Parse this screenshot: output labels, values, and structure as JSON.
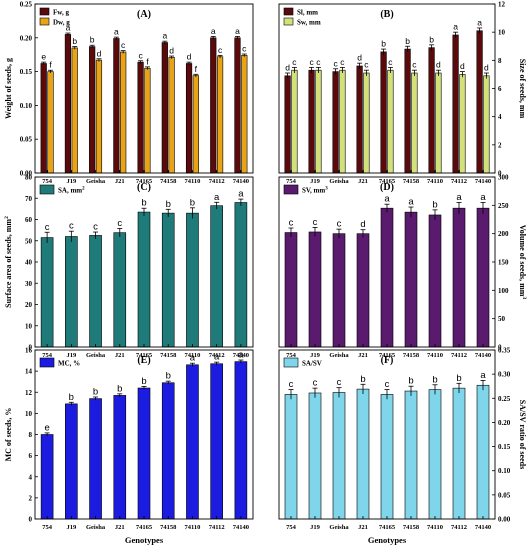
{
  "genotypes": [
    "754",
    "J19",
    "Geisha",
    "J21",
    "74165",
    "74158",
    "74110",
    "74112",
    "74140"
  ],
  "xlabel": "Genotypes",
  "chart_data": [
    {
      "type": "bar",
      "panel": "(A)",
      "ylabel": "Weight of seeds, g",
      "ylim": [
        0,
        0.25
      ],
      "yticks": [
        "0.00",
        "0.05",
        "0.10",
        "0.15",
        "0.20",
        "0.25"
      ],
      "grid": false,
      "legend": "top-left",
      "categories": [
        "754",
        "J19",
        "Geisha",
        "J21",
        "74165",
        "74158",
        "74110",
        "74112",
        "74140"
      ],
      "series": [
        {
          "name": "Fw, g",
          "color": "#5a0a0a",
          "values": [
            0.162,
            0.205,
            0.187,
            0.199,
            0.164,
            0.193,
            0.162,
            0.2,
            0.2
          ],
          "err": [
            0.002,
            0.002,
            0.002,
            0.002,
            0.002,
            0.002,
            0.002,
            0.002,
            0.002
          ],
          "letters": [
            "e",
            "a",
            "b",
            "a",
            "c",
            "a",
            "d",
            "a",
            "a"
          ]
        },
        {
          "name": "Dw, g",
          "color": "#e8a317",
          "values": [
            0.15,
            0.185,
            0.167,
            0.179,
            0.155,
            0.171,
            0.144,
            0.172,
            0.174
          ],
          "err": [
            0.002,
            0.002,
            0.002,
            0.002,
            0.002,
            0.002,
            0.002,
            0.002,
            0.002
          ],
          "letters": [
            "f",
            "b",
            "d",
            "c",
            "f",
            "d",
            "f",
            "c",
            "c"
          ]
        }
      ]
    },
    {
      "type": "bar",
      "panel": "(B)",
      "ylabel": "Size of seeds, mm",
      "ylim": [
        0,
        12
      ],
      "yticks": [
        "0",
        "2",
        "4",
        "6",
        "8",
        "10",
        "12"
      ],
      "grid": false,
      "legend": "top-left",
      "categories": [
        "754",
        "J19",
        "Geisha",
        "J21",
        "74165",
        "74158",
        "74110",
        "74112",
        "74140"
      ],
      "series": [
        {
          "name": "Sl, mm",
          "color": "#5a0a0a",
          "values": [
            6.9,
            7.3,
            7.2,
            7.6,
            8.6,
            8.8,
            8.9,
            9.8,
            10.1
          ],
          "err": [
            0.2,
            0.2,
            0.2,
            0.2,
            0.2,
            0.2,
            0.2,
            0.2,
            0.2
          ],
          "letters": [
            "d",
            "c",
            "c",
            "d",
            "b",
            "b",
            "b",
            "a",
            "a"
          ]
        },
        {
          "name": "Sw, mm",
          "color": "#d4e07a",
          "values": [
            7.3,
            7.3,
            7.3,
            7.1,
            7.3,
            7.1,
            7.1,
            7.0,
            6.9
          ],
          "err": [
            0.2,
            0.2,
            0.2,
            0.2,
            0.2,
            0.2,
            0.2,
            0.2,
            0.2
          ],
          "letters": [
            "c",
            "c",
            "c",
            "c",
            "c",
            "c",
            "d",
            "d",
            "d"
          ]
        }
      ]
    },
    {
      "type": "bar",
      "panel": "(C)",
      "ylabel": "Surface area of seeds, mm",
      "ylabel_sup": "2",
      "ylim": [
        0,
        80
      ],
      "yticks": [
        "0",
        "10",
        "20",
        "30",
        "40",
        "50",
        "60",
        "70",
        "80"
      ],
      "grid": false,
      "legend": "top-left",
      "categories": [
        "754",
        "J19",
        "Geisha",
        "J21",
        "74165",
        "74158",
        "74110",
        "74112",
        "74140"
      ],
      "series": [
        {
          "name": "SA, mm",
          "name_sup": "2",
          "color": "#1f7a7a",
          "values": [
            51.5,
            52.0,
            52.5,
            53.8,
            63.5,
            63.0,
            63.0,
            66.5,
            68.0
          ],
          "err": [
            2.5,
            2.5,
            1.6,
            2.0,
            1.8,
            1.8,
            2.5,
            1.6,
            1.6
          ],
          "letters": [
            "c",
            "c",
            "c",
            "c",
            "b",
            "b",
            "b",
            "a",
            "a"
          ]
        }
      ]
    },
    {
      "type": "bar",
      "panel": "(D)",
      "ylabel": "Volume of seeds, mm",
      "ylabel_sup": "3",
      "ylim": [
        0,
        300
      ],
      "yticks": [
        "0",
        "50",
        "100",
        "150",
        "200",
        "250",
        "300"
      ],
      "grid": false,
      "legend": "top-left",
      "categories": [
        "754",
        "J19",
        "Geisha",
        "J21",
        "74165",
        "74158",
        "74110",
        "74112",
        "74140"
      ],
      "series": [
        {
          "name": "SV, mm",
          "name_sup": "3",
          "color": "#5a1a6e",
          "values": [
            202,
            203,
            200,
            200,
            245,
            238,
            233,
            245,
            245
          ],
          "err": [
            8,
            8,
            8,
            7,
            7,
            9,
            9,
            10,
            10
          ],
          "letters": [
            "c",
            "c",
            "c",
            "d",
            "a",
            "a",
            "b",
            "a",
            "a"
          ]
        }
      ]
    },
    {
      "type": "bar",
      "panel": "(E)",
      "ylabel": "MC of seeds, %",
      "ylim": [
        0,
        16
      ],
      "yticks": [
        "0",
        "2",
        "4",
        "6",
        "8",
        "10",
        "12",
        "14",
        "16"
      ],
      "grid": false,
      "legend": "top-left",
      "categories": [
        "754",
        "J19",
        "Geisha",
        "J21",
        "74165",
        "74158",
        "74110",
        "74112",
        "74140"
      ],
      "series": [
        {
          "name": "MC, %",
          "color": "#1c1ce0",
          "values": [
            8.0,
            10.9,
            11.4,
            11.7,
            12.4,
            12.9,
            14.6,
            14.7,
            14.9
          ],
          "err": [
            0.15,
            0.15,
            0.15,
            0.15,
            0.15,
            0.15,
            0.15,
            0.15,
            0.15
          ],
          "letters": [
            "e",
            "b",
            "b",
            "b",
            "b",
            "b",
            "a",
            "a",
            "a"
          ]
        }
      ]
    },
    {
      "type": "bar",
      "panel": "(F)",
      "ylabel": "SA/SV ratio of seeds",
      "ylim": [
        0,
        0.35
      ],
      "yticks": [
        "0.00",
        "0.05",
        "0.10",
        "0.15",
        "0.20",
        "0.25",
        "0.30",
        "0.35"
      ],
      "grid": false,
      "legend": "top-left",
      "categories": [
        "754",
        "J19",
        "Geisha",
        "J21",
        "74165",
        "74158",
        "74110",
        "74112",
        "74140"
      ],
      "series": [
        {
          "name": "SA/SV",
          "color": "#7fd6ea",
          "values": [
            0.258,
            0.261,
            0.262,
            0.269,
            0.258,
            0.265,
            0.268,
            0.271,
            0.277
          ],
          "err": [
            0.01,
            0.01,
            0.01,
            0.01,
            0.01,
            0.01,
            0.01,
            0.01,
            0.01
          ],
          "letters": [
            "c",
            "c",
            "c",
            "b",
            "c",
            "b",
            "b",
            "b",
            "a"
          ]
        }
      ]
    }
  ]
}
